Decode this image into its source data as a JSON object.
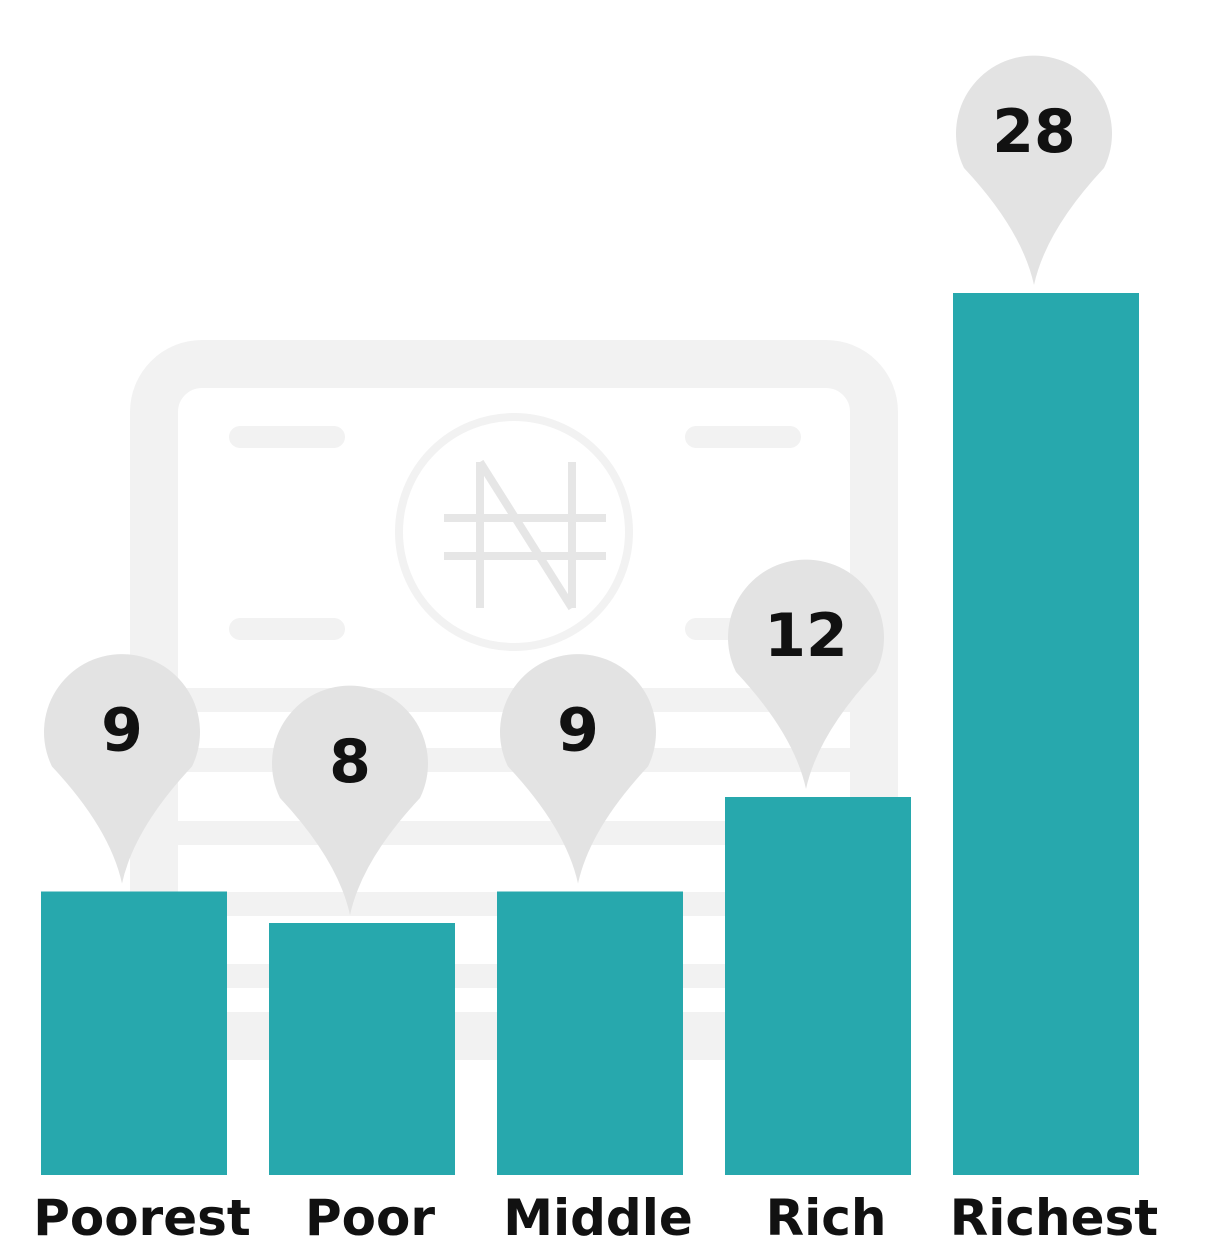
{
  "chart_data": {
    "type": "bar",
    "categories": [
      "Poorest",
      "Poor",
      "Middle",
      "Rich",
      "Richest"
    ],
    "values": [
      9,
      8,
      9,
      12,
      28
    ],
    "color": "#27a8ad"
  }
}
